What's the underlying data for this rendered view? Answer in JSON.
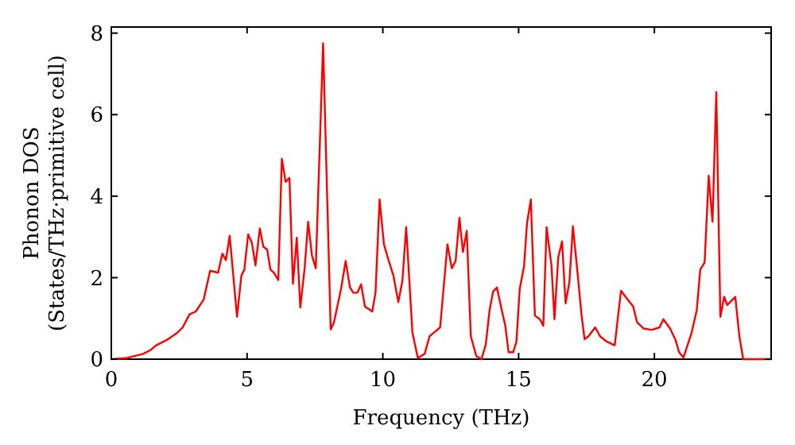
{
  "chart_data": {
    "type": "line",
    "xlabel": "Frequency (THz)",
    "ylabel": "Phonon DOS\n(States/THz·primitive cell)",
    "xlim": [
      0,
      24.3
    ],
    "ylim": [
      0,
      8.15
    ],
    "xticks": [
      0,
      5,
      10,
      15,
      20
    ],
    "yticks": [
      0,
      2,
      4,
      6,
      8
    ],
    "grid": false,
    "marker": "none",
    "line_style": "solid",
    "series": [
      {
        "color": "#ff0000",
        "x": [
          0,
          0.58,
          1.17,
          1.46,
          1.65,
          2.04,
          2.43,
          2.63,
          2.88,
          3.11,
          3.4,
          3.64,
          3.93,
          4.09,
          4.22,
          4.36,
          4.63,
          4.79,
          4.9,
          5.04,
          5.18,
          5.31,
          5.47,
          5.6,
          5.74,
          5.86,
          5.99,
          6.15,
          6.28,
          6.42,
          6.56,
          6.69,
          6.83,
          6.96,
          7.12,
          7.25,
          7.39,
          7.53,
          7.8,
          8.08,
          8.2,
          8.46,
          8.63,
          8.79,
          8.91,
          9.06,
          9.2,
          9.34,
          9.61,
          9.73,
          9.88,
          10.04,
          10.21,
          10.39,
          10.57,
          10.72,
          10.86,
          11.09,
          11.29,
          11.54,
          11.72,
          11.88,
          12.11,
          12.38,
          12.54,
          12.68,
          12.82,
          12.95,
          13.09,
          13.24,
          13.44,
          13.63,
          13.79,
          13.93,
          14.06,
          14.2,
          14.38,
          14.51,
          14.63,
          14.8,
          14.92,
          15.04,
          15.2,
          15.31,
          15.45,
          15.6,
          15.78,
          15.91,
          16.03,
          16.21,
          16.32,
          16.46,
          16.6,
          16.73,
          16.87,
          17.0,
          17.18,
          17.32,
          17.43,
          17.57,
          17.82,
          18.0,
          18.25,
          18.54,
          18.77,
          18.97,
          19.22,
          19.36,
          19.61,
          19.9,
          20.19,
          20.33,
          20.58,
          20.78,
          20.91,
          21.07,
          21.36,
          21.56,
          21.69,
          21.85,
          22.0,
          22.14,
          22.28,
          22.43,
          22.57,
          22.68,
          22.98,
          23.13,
          23.27,
          24.3
        ],
        "values": [
          0,
          0.03,
          0.13,
          0.23,
          0.34,
          0.47,
          0.65,
          0.78,
          1.1,
          1.17,
          1.46,
          2.17,
          2.12,
          2.59,
          2.43,
          3.03,
          1.04,
          2.05,
          2.2,
          3.06,
          2.85,
          2.3,
          3.21,
          2.76,
          2.69,
          2.2,
          2.12,
          1.94,
          4.92,
          4.35,
          4.45,
          1.85,
          2.98,
          1.27,
          2.23,
          3.37,
          2.54,
          2.23,
          7.75,
          0.73,
          0.9,
          1.72,
          2.41,
          1.76,
          1.63,
          1.63,
          1.84,
          1.29,
          1.17,
          1.63,
          3.92,
          2.82,
          2.43,
          2.05,
          1.4,
          1.92,
          3.24,
          0.65,
          0.03,
          0.13,
          0.56,
          0.65,
          0.78,
          2.82,
          2.23,
          2.41,
          3.47,
          2.63,
          3.15,
          0.56,
          0.08,
          0,
          0.36,
          1.2,
          1.66,
          1.76,
          1.2,
          0.82,
          0.17,
          0.17,
          0.43,
          1.72,
          2.28,
          3.34,
          3.92,
          1.07,
          0.98,
          0.82,
          3.24,
          2.3,
          0.98,
          2.5,
          2.89,
          1.37,
          1.89,
          3.26,
          2.05,
          1.07,
          0.49,
          0.56,
          0.78,
          0.56,
          0.43,
          0.34,
          1.68,
          1.5,
          1.29,
          0.91,
          0.75,
          0.72,
          0.78,
          0.98,
          0.75,
          0.47,
          0.17,
          0.04,
          0.62,
          1.2,
          2.2,
          2.37,
          4.5,
          3.37,
          6.55,
          1.04,
          1.53,
          1.33,
          1.53,
          0.56,
          0,
          0
        ]
      }
    ]
  }
}
